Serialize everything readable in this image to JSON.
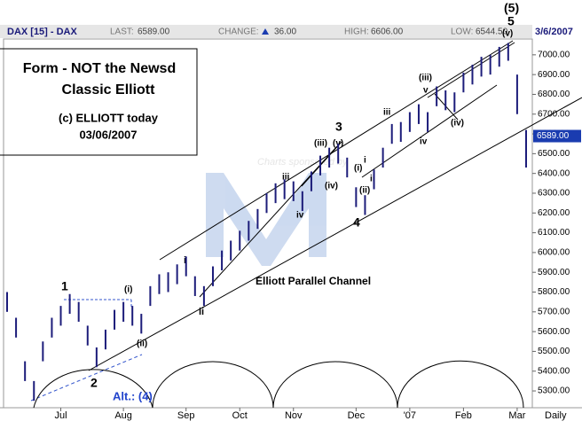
{
  "header": {
    "symbol": "DAX [15] - DAX",
    "last_label": "LAST:",
    "last": "6589.00",
    "change_label": "CHANGE:",
    "change": "36.00",
    "high_label": "HIGH:",
    "high": "6606.00",
    "low_label": "LOW:",
    "low": "6544.50",
    "date": "3/6/2007"
  },
  "note_box": [
    "Form - NOT the Newsd",
    "Classic Elliott",
    "(c) ELLIOTT today",
    "03/06/2007"
  ],
  "annotations": [
    "(5)",
    "5",
    "(v)",
    "3",
    "(iii)",
    "(v)",
    "iii",
    "iv",
    "(iv)",
    "4",
    "(i)",
    "i",
    "ii",
    "(ii)",
    "(iii)",
    "v",
    "iii",
    "iv",
    "(iv)",
    "1",
    "(i)",
    "2",
    "(ii)",
    "Alt.: (4)",
    "i",
    "ii",
    "Elliott Parallel Channel",
    "Charts sponsored by"
  ],
  "chart_data": {
    "type": "ohlc",
    "color": "#1c1c7a",
    "x_label": "Daily",
    "categories": [
      null,
      null,
      null,
      null,
      null,
      null,
      "Jul",
      null,
      null,
      null,
      null,
      null,
      null,
      "Aug",
      null,
      null,
      null,
      null,
      null,
      null,
      "Sep",
      null,
      null,
      null,
      null,
      null,
      "Oct",
      null,
      null,
      null,
      null,
      null,
      "Nov",
      null,
      null,
      null,
      null,
      null,
      null,
      "Dec",
      null,
      null,
      null,
      null,
      null,
      "'07",
      null,
      null,
      null,
      null,
      null,
      "Feb",
      null,
      null,
      null,
      null,
      null,
      "Mar",
      null
    ],
    "high": [
      5800,
      5670,
      5450,
      5350,
      5550,
      5670,
      5730,
      5790,
      5750,
      5630,
      5520,
      5610,
      5710,
      5750,
      5730,
      5690,
      5830,
      5890,
      5900,
      5940,
      5980,
      5880,
      5830,
      5930,
      6010,
      6060,
      6110,
      6160,
      6220,
      6300,
      6350,
      6370,
      6360,
      6310,
      6410,
      6490,
      6530,
      6550,
      6480,
      6330,
      6290,
      6420,
      6530,
      6650,
      6660,
      6710,
      6750,
      6710,
      6840,
      6820,
      6810,
      6910,
      6950,
      6990,
      7000,
      7040,
      7060,
      6900,
      6620
    ],
    "low": [
      5700,
      5570,
      5350,
      5250,
      5450,
      5570,
      5630,
      5690,
      5650,
      5530,
      5420,
      5510,
      5610,
      5650,
      5630,
      5590,
      5730,
      5790,
      5800,
      5840,
      5880,
      5780,
      5730,
      5830,
      5910,
      5960,
      6010,
      6060,
      6120,
      6200,
      6250,
      6270,
      6260,
      6210,
      6310,
      6390,
      6430,
      6450,
      6380,
      6230,
      6190,
      6320,
      6430,
      6550,
      6560,
      6610,
      6650,
      6610,
      6740,
      6720,
      6710,
      6810,
      6850,
      6890,
      6900,
      6940,
      6970,
      6700,
      6430
    ],
    "ylim": [
      5215,
      7080
    ],
    "yticks": [
      {
        "value": 5300,
        "label": "5300.00"
      },
      {
        "value": 5400,
        "label": "5400.00"
      },
      {
        "value": 5500,
        "label": "5500.00"
      },
      {
        "value": 5600,
        "label": "5600.00"
      },
      {
        "value": 5700,
        "label": "5700.00"
      },
      {
        "value": 5800,
        "label": "5800.00"
      },
      {
        "value": 5900,
        "label": "5900.00"
      },
      {
        "value": 6000,
        "label": "6000.00"
      },
      {
        "value": 6100,
        "label": "6100.00"
      },
      {
        "value": 6200,
        "label": "6200.00"
      },
      {
        "value": 6300,
        "label": "6300.00"
      },
      {
        "value": 6400,
        "label": "6400.00"
      },
      {
        "value": 6500,
        "label": "6500.00"
      },
      {
        "value": 6600,
        "label": "6600.00"
      },
      {
        "value": 6700,
        "label": "6700.00"
      },
      {
        "value": 6800,
        "label": "6800.00"
      },
      {
        "value": 6900,
        "label": "6900.00"
      },
      {
        "value": 7000,
        "label": "7000.00"
      }
    ],
    "last_value": {
      "value": 6589,
      "label": "6589.00"
    }
  }
}
